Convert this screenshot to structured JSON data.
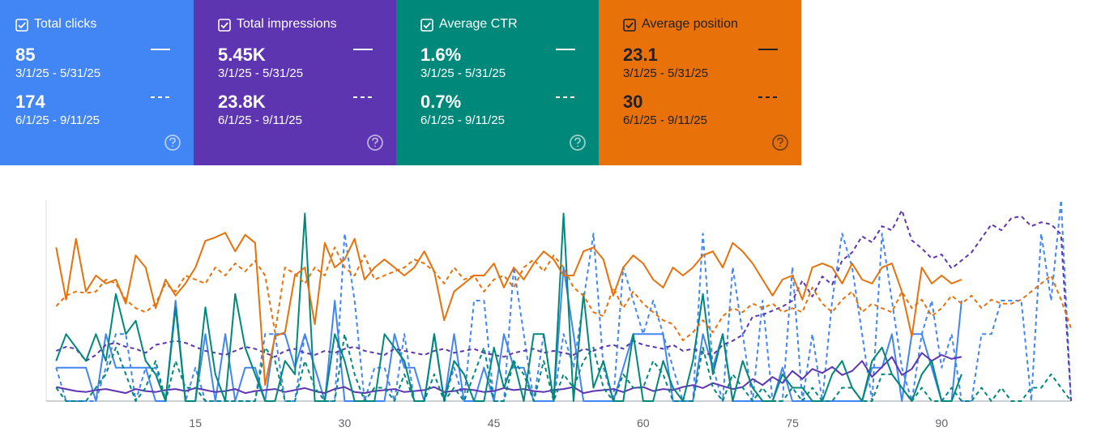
{
  "chart_data": {
    "type": "line",
    "x": [
      1,
      2,
      3,
      4,
      5,
      6,
      7,
      8,
      9,
      10,
      11,
      12,
      13,
      14,
      15,
      16,
      17,
      18,
      19,
      20,
      21,
      22,
      23,
      24,
      25,
      26,
      27,
      28,
      29,
      30,
      31,
      32,
      33,
      34,
      35,
      36,
      37,
      38,
      39,
      40,
      41,
      42,
      43,
      44,
      45,
      46,
      47,
      48,
      49,
      50,
      51,
      52,
      53,
      54,
      55,
      56,
      57,
      58,
      59,
      60,
      61,
      62,
      63,
      64,
      65,
      66,
      67,
      68,
      69,
      70,
      71,
      72,
      73,
      74,
      75,
      76,
      77,
      78,
      79,
      80,
      81,
      82,
      83,
      84,
      85,
      86,
      87,
      88,
      89,
      90,
      91,
      92,
      93,
      94,
      95,
      96,
      97,
      98,
      99,
      100,
      101,
      102,
      103
    ],
    "xlim": [
      0,
      103
    ],
    "xticks": [
      15,
      30,
      45,
      60,
      75,
      90
    ],
    "series": [
      {
        "name": "Total clicks",
        "total": "85",
        "range": "3/1/25 - 5/31/25",
        "color": "#4285f4",
        "dashed": false,
        "ylim": [
          0,
          6
        ],
        "values": [
          1,
          1,
          1,
          1,
          0,
          2,
          1,
          1,
          1,
          1,
          0,
          0,
          3,
          0,
          0,
          2,
          0,
          2,
          0,
          1,
          1,
          0,
          2,
          2,
          1,
          2,
          1,
          0,
          3,
          0,
          0,
          0,
          0,
          0,
          2,
          1,
          1,
          0,
          2,
          0,
          2,
          0,
          0,
          1,
          0,
          2,
          1,
          1,
          0,
          0,
          0,
          4,
          2,
          0,
          0,
          0,
          0,
          1,
          2,
          2,
          2,
          2,
          0,
          0,
          0,
          2,
          1,
          2,
          0,
          0,
          0,
          0,
          0,
          1,
          0,
          0,
          0,
          0,
          0,
          0,
          0,
          0,
          1,
          1,
          2,
          0,
          2,
          2,
          1,
          0,
          0,
          3,
          null,
          null,
          null,
          null,
          null,
          null,
          null,
          null,
          null,
          null,
          null
        ]
      },
      {
        "total": "174",
        "range": "6/1/25 - 9/11/25",
        "color": "#4285f4",
        "dashed": true,
        "ylim": [
          0,
          6
        ],
        "values": [
          1,
          0,
          0,
          0,
          0,
          1,
          2,
          2,
          0,
          1,
          1,
          0,
          3,
          0,
          1,
          0,
          0,
          0,
          0,
          0,
          0,
          2,
          2,
          0,
          0,
          2,
          1,
          0,
          0,
          5,
          3,
          0,
          1,
          1,
          0,
          2,
          0,
          0,
          2,
          0,
          1,
          0,
          3,
          3,
          0,
          0,
          4,
          2,
          0,
          2,
          0,
          2,
          1,
          3,
          5,
          1,
          0,
          4,
          3,
          2,
          3,
          2,
          1,
          0,
          0,
          5,
          1,
          0,
          4,
          2,
          0,
          3,
          0,
          0,
          4,
          0,
          2,
          0,
          3,
          5,
          4,
          2,
          0,
          5,
          3,
          1,
          0,
          2,
          3,
          1,
          2,
          0,
          0,
          2,
          2,
          3,
          3,
          3,
          0,
          5,
          3,
          6,
          0
        ]
      },
      {
        "name": "Total impressions",
        "total": "5.45K",
        "range": "3/1/25 - 5/31/25",
        "color": "#5e35b1",
        "dashed": false,
        "ylim": [
          0,
          1000
        ],
        "values": [
          70,
          60,
          50,
          45,
          55,
          60,
          50,
          40,
          60,
          50,
          45,
          55,
          60,
          50,
          65,
          55,
          45,
          50,
          60,
          40,
          50,
          55,
          60,
          45,
          55,
          65,
          50,
          40,
          60,
          70,
          45,
          40,
          50,
          55,
          60,
          45,
          50,
          55,
          70,
          45,
          50,
          60,
          55,
          45,
          50,
          65,
          55,
          60,
          50,
          45,
          55,
          60,
          70,
          40,
          50,
          55,
          60,
          45,
          65,
          70,
          50,
          60,
          55,
          70,
          80,
          65,
          90,
          75,
          60,
          70,
          110,
          80,
          120,
          90,
          150,
          110,
          160,
          140,
          170,
          130,
          150,
          200,
          120,
          170,
          220,
          130,
          160,
          240,
          200,
          230,
          210,
          220,
          null,
          null,
          null,
          null,
          null,
          null,
          null,
          null,
          null,
          null,
          null
        ]
      },
      {
        "total": "23.8K",
        "range": "6/1/25 - 9/11/25",
        "color": "#5e35b1",
        "dashed": true,
        "ylim": [
          0,
          1000
        ],
        "values": [
          250,
          270,
          260,
          200,
          230,
          280,
          290,
          270,
          260,
          240,
          280,
          290,
          300,
          290,
          270,
          250,
          240,
          230,
          250,
          270,
          260,
          240,
          220,
          250,
          260,
          240,
          230,
          250,
          240,
          260,
          270,
          250,
          240,
          230,
          260,
          250,
          240,
          230,
          250,
          260,
          240,
          250,
          260,
          240,
          230,
          220,
          240,
          250,
          260,
          240,
          250,
          240,
          230,
          260,
          250,
          270,
          280,
          260,
          300,
          280,
          270,
          260,
          280,
          250,
          260,
          240,
          230,
          280,
          300,
          330,
          420,
          430,
          450,
          470,
          500,
          600,
          520,
          620,
          580,
          700,
          740,
          820,
          790,
          870,
          850,
          950,
          800,
          760,
          710,
          730,
          660,
          700,
          740,
          810,
          880,
          850,
          910,
          920,
          870,
          890,
          880,
          830,
          0
        ]
      },
      {
        "name": "Average CTR",
        "total": "1.6%",
        "range": "3/1/25 - 5/31/25",
        "color": "#00897b",
        "dashed": false,
        "ylim": [
          0,
          15
        ],
        "values": [
          3,
          5,
          4,
          3,
          5,
          3,
          8,
          5,
          6,
          3,
          2,
          0,
          7,
          0,
          0,
          7,
          2,
          0,
          8,
          4,
          2,
          0,
          0,
          3,
          2,
          14,
          0,
          0,
          5,
          3,
          0,
          0,
          0,
          5,
          4,
          3,
          0,
          0,
          5,
          0,
          3,
          2,
          0,
          0,
          4,
          1,
          3,
          0,
          5,
          5,
          0,
          14,
          0,
          8,
          1,
          3,
          0,
          0,
          5,
          0,
          0,
          3,
          1,
          0,
          3,
          8,
          2,
          5,
          0,
          3,
          1,
          0,
          0,
          2,
          1,
          1,
          0,
          0,
          2,
          3,
          1,
          0,
          3,
          4,
          2,
          1,
          0,
          2,
          3,
          0,
          0,
          2,
          null,
          null,
          null,
          null,
          null,
          null,
          null,
          null,
          null,
          null,
          null
        ]
      },
      {
        "total": "0.7%",
        "range": "6/1/25 - 9/11/25",
        "color": "#00897b",
        "dashed": true,
        "ylim": [
          0,
          15
        ],
        "values": [
          1,
          0,
          0,
          0,
          1,
          2,
          4,
          2,
          0,
          1,
          3,
          0,
          3,
          1,
          1,
          0,
          0,
          0,
          0,
          0,
          0,
          4,
          3,
          0,
          0,
          3,
          1,
          0,
          0,
          5,
          2,
          0,
          1,
          1,
          0,
          2,
          0,
          0,
          2,
          0,
          1,
          0,
          2,
          4,
          0,
          0,
          3,
          2,
          0,
          3,
          0,
          2,
          1,
          3,
          4,
          1,
          0,
          2,
          1,
          1,
          3,
          2,
          0,
          0,
          0,
          4,
          1,
          0,
          2,
          1,
          0,
          1,
          0,
          0,
          1,
          0,
          1,
          0,
          0,
          1,
          1,
          0,
          0,
          2,
          2,
          1,
          0,
          1,
          0,
          0,
          1,
          0,
          0,
          1,
          0,
          1,
          0,
          0,
          1,
          1,
          2,
          1,
          0
        ]
      },
      {
        "name": "Average position",
        "total": "23.1",
        "range": "3/1/25 - 5/31/25",
        "color": "#e8710a",
        "dashed": false,
        "ylim": [
          40,
          0
        ],
        "values": [
          9.4,
          19.8,
          7.7,
          18.2,
          15,
          16.6,
          15.8,
          20.6,
          11,
          13.4,
          21.5,
          15.8,
          19,
          16.6,
          13.4,
          8.1,
          7.4,
          6.5,
          10.2,
          6.9,
          8.5,
          36.8,
          27.1,
          26.3,
          15,
          13.4,
          24.7,
          8.5,
          13.4,
          11.8,
          7.7,
          15.8,
          13.4,
          11.8,
          13.4,
          15,
          13.4,
          10.2,
          14.2,
          23.9,
          18.2,
          16.6,
          15,
          15,
          12.6,
          17.4,
          13.4,
          15.8,
          12.6,
          10.2,
          11.8,
          15,
          15,
          10.2,
          9.4,
          11.8,
          19,
          13.4,
          11,
          12.6,
          15.8,
          17.4,
          13.4,
          15,
          13.4,
          11,
          10.2,
          13.4,
          8.5,
          10.2,
          12.6,
          15.8,
          19,
          15.8,
          15,
          19.8,
          13.4,
          12.6,
          13.4,
          16.6,
          12.6,
          15.8,
          16.6,
          13.4,
          12.6,
          18.2,
          27.1,
          13.4,
          16.6,
          15,
          16.6,
          15.8,
          null,
          null,
          null,
          null,
          null,
          null,
          null,
          null,
          null,
          null,
          null
        ]
      },
      {
        "total": "30",
        "range": "6/1/25 - 9/11/25",
        "color": "#e8710a",
        "dashed": true,
        "ylim": [
          40,
          0
        ],
        "values": [
          21.1,
          19,
          18.2,
          18.5,
          18.2,
          15.8,
          16.6,
          19.8,
          21.5,
          22.3,
          20.6,
          16.6,
          18.2,
          15,
          15.8,
          16.6,
          13.4,
          15,
          12.6,
          14.2,
          12.1,
          15,
          26.3,
          13.4,
          14.7,
          16.6,
          13.4,
          15,
          9.4,
          13.4,
          15,
          11,
          15.8,
          15,
          14.2,
          13.4,
          11.8,
          12.6,
          14.2,
          16.6,
          13.4,
          15.8,
          15,
          18.2,
          15.8,
          15,
          17.4,
          13.4,
          11.8,
          14.2,
          11,
          13.4,
          17.4,
          19,
          22.3,
          23.1,
          17.4,
          21.5,
          18.2,
          20.6,
          22.3,
          23.9,
          24.7,
          27.9,
          26.3,
          23.9,
          26.3,
          23.1,
          21.5,
          22.3,
          20.6,
          21.5,
          20.6,
          22.3,
          21.5,
          22.3,
          17.4,
          20.6,
          22.3,
          19.8,
          18.2,
          22.3,
          20.6,
          21.5,
          22.3,
          18.2,
          21.5,
          19.8,
          23.1,
          21.5,
          19,
          20.6,
          19,
          21.5,
          19.8,
          20.6,
          20.6,
          19.8,
          18.2,
          16.6,
          15,
          19.8,
          25.5
        ]
      }
    ]
  }
}
